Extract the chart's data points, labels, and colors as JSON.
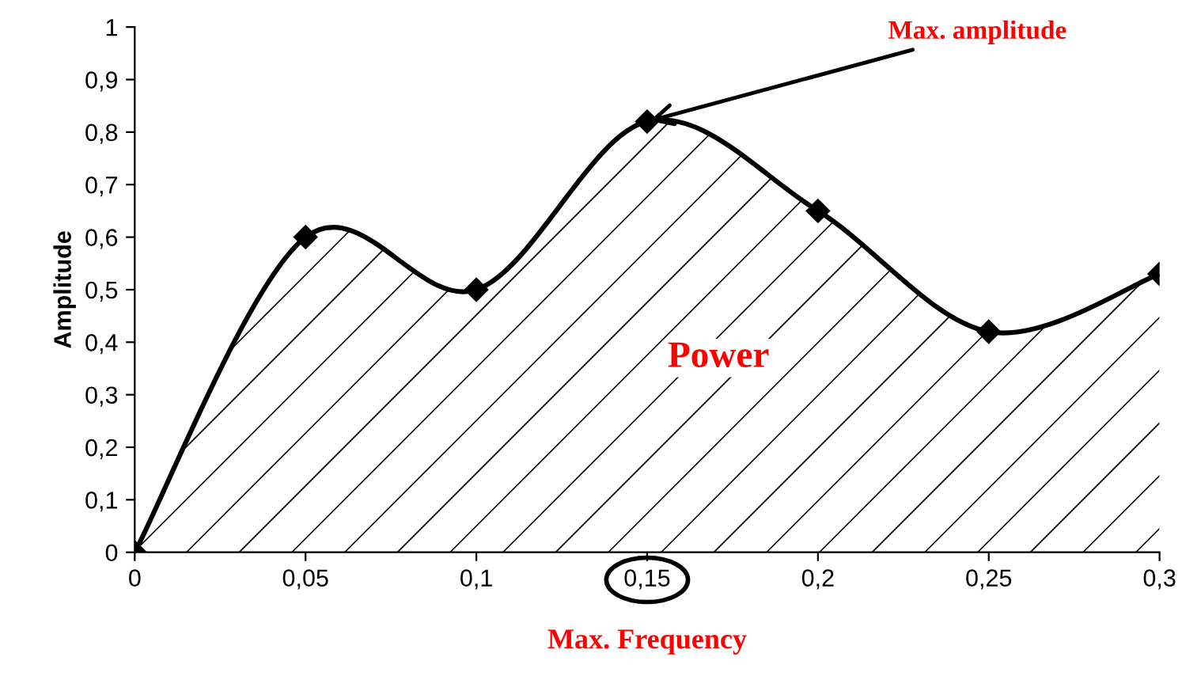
{
  "chart_data": {
    "type": "area",
    "ylabel": "Amplitude",
    "x": [
      0,
      0.05,
      0.1,
      0.15,
      0.2,
      0.25,
      0.3
    ],
    "series": [
      {
        "color": "#000000",
        "values": [
          0,
          0.6,
          0.5,
          0.82,
          0.65,
          0.42,
          0.53
        ]
      }
    ],
    "marker": "diamond",
    "grid": false,
    "xlim": [
      0,
      0.3
    ],
    "xticks": [
      0,
      {
        "value": 0.05,
        "label": "0,05"
      },
      {
        "value": 0.1,
        "label": "0,1"
      },
      {
        "value": 0.15,
        "label": "0,15"
      },
      {
        "value": 0.2,
        "label": "0,2"
      },
      {
        "value": 0.25,
        "label": "0,25"
      },
      {
        "value": 0.3,
        "label": "0,3"
      }
    ],
    "ylim": [
      0,
      1
    ],
    "yticks": [
      0,
      {
        "value": 0.1,
        "label": "0,1"
      },
      {
        "value": 0.2,
        "label": "0,2"
      },
      {
        "value": 0.3,
        "label": "0,3"
      },
      {
        "value": 0.4,
        "label": "0,4"
      },
      {
        "value": 0.5,
        "label": "0,5"
      },
      {
        "value": 0.6,
        "label": "0,6"
      },
      {
        "value": 0.7,
        "label": "0,7"
      },
      {
        "value": 0.8,
        "label": "0,8"
      },
      {
        "value": 0.9,
        "label": "0,9"
      },
      1
    ],
    "annotations": [
      {
        "text": "Max. amplitude",
        "x": 0.15,
        "y": 0.82
      },
      "Power",
      "Max. Frequency"
    ]
  }
}
